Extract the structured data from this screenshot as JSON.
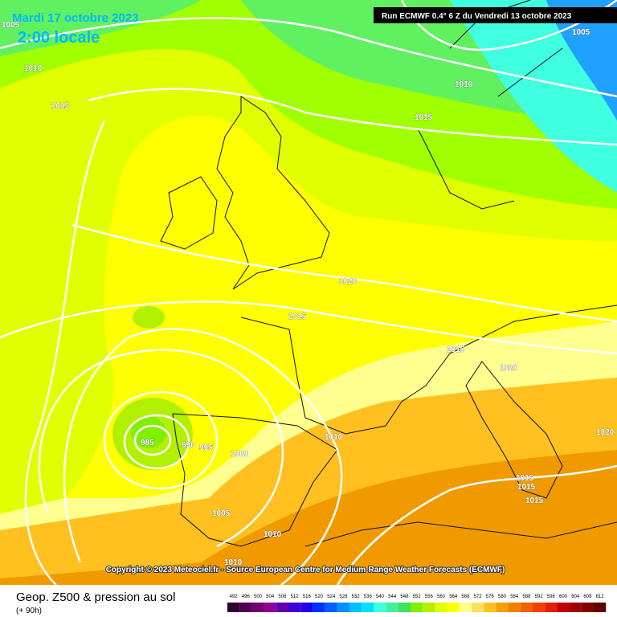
{
  "header": {
    "date": "Mardi 17 octobre 2023",
    "time": "2:00 locale",
    "run": "Run ECMWF 0.4° 6 Z du Vendredi 13 octobre 2023"
  },
  "isobar_labels": [
    1005,
    1010,
    1015,
    1005,
    1010,
    1015,
    1020,
    1015,
    1015,
    1020,
    985,
    990,
    995,
    1000,
    1010,
    1005,
    1010,
    1010,
    1015,
    1015,
    1015,
    1020
  ],
  "copyright": "Copyright © 2023 Meteociel.fr - Source European Centre for Medium-Range Weather Forecasts (ECMWF)",
  "footer": {
    "title": "Geop. Z500 & pression au sol",
    "lead": "(+ 90h)"
  },
  "colorbar": {
    "labels": [
      492,
      496,
      500,
      504,
      508,
      512,
      516,
      520,
      524,
      528,
      532,
      536,
      540,
      544,
      548,
      552,
      556,
      560,
      564,
      568,
      572,
      576,
      580,
      584,
      588,
      592,
      596,
      600,
      604,
      608,
      612
    ],
    "colors": [
      "#300030",
      "#500050",
      "#700070",
      "#900090",
      "#6000b0",
      "#4000d0",
      "#2000f0",
      "#0030ff",
      "#0060ff",
      "#0090ff",
      "#00c0ff",
      "#00e0ff",
      "#40ffe0",
      "#40f0a0",
      "#40e060",
      "#80f000",
      "#b0f000",
      "#e0ff00",
      "#ffff00",
      "#ffff90",
      "#ffe060",
      "#ffc020",
      "#f0a000",
      "#f08000",
      "#f06000",
      "#f04000",
      "#e02000",
      "#c00000",
      "#a00000",
      "#800000",
      "#600000"
    ]
  }
}
